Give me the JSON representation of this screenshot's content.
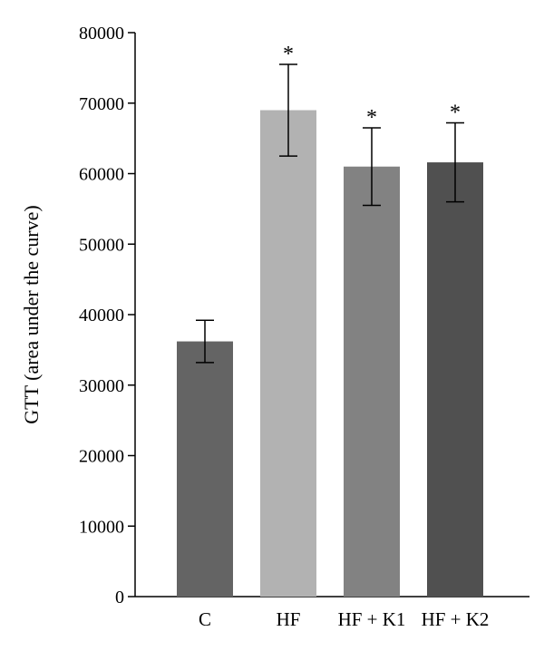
{
  "chart_data": {
    "type": "bar",
    "categories": [
      "C",
      "HF",
      "HF + K1",
      "HF + K2"
    ],
    "values": [
      36200,
      69000,
      61000,
      61600
    ],
    "errors": [
      3000,
      6500,
      5500,
      5600
    ],
    "significance": [
      "",
      "*",
      "*",
      "*"
    ],
    "ylabel": "GTT (area under the curve)",
    "xlabel": "",
    "ylim": [
      0,
      80000
    ],
    "yticks": [
      0,
      10000,
      20000,
      30000,
      40000,
      50000,
      60000,
      70000,
      80000
    ],
    "colors": [
      "#646464",
      "#b2b2b2",
      "#828282",
      "#505050"
    ],
    "grid": false
  }
}
